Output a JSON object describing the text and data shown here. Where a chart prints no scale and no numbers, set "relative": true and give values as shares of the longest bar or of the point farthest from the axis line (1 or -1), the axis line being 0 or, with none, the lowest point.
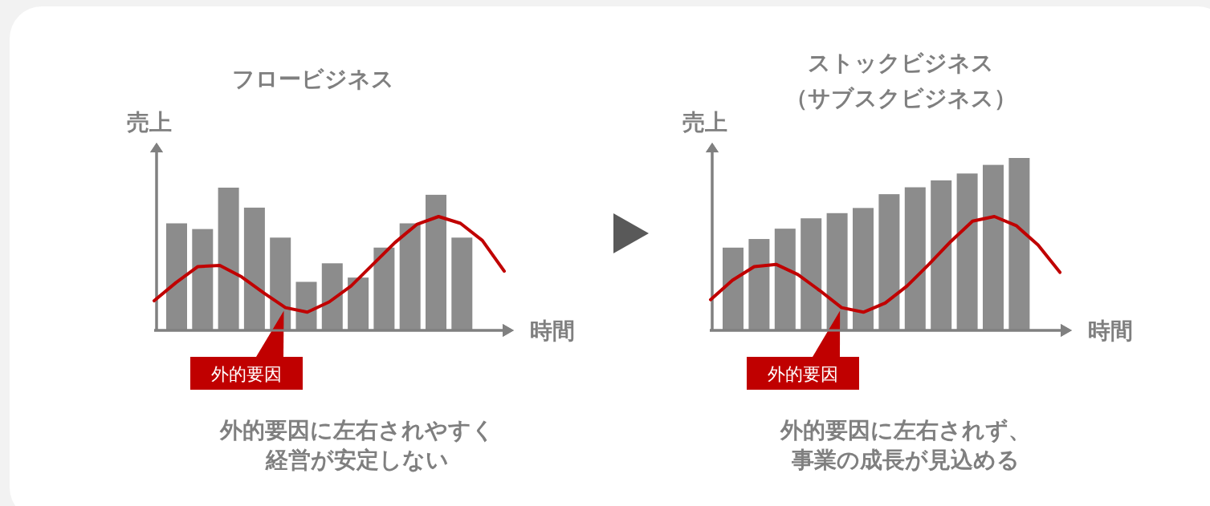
{
  "chart_data": [
    {
      "type": "bar",
      "title": "フロービジネス",
      "ylabel": "売上",
      "xlabel": "時間",
      "relative": true,
      "categories": [
        null,
        null,
        null,
        null,
        null,
        null,
        null,
        null,
        null,
        null,
        null,
        null
      ],
      "series": [
        {
          "color": "#8c8c8c",
          "values": [
            0.75,
            0.71,
            1,
            0.86,
            0.65,
            0.34,
            0.47,
            0.37,
            0.58,
            0.75,
            0.95,
            0.65
          ]
        }
      ],
      "annotations": [
        "外的要因に左右されやすく",
        "経営が安定しない"
      ]
    },
    {
      "type": "line",
      "relative": true,
      "categories": [
        null,
        null,
        null,
        null,
        null,
        null,
        null,
        null,
        null,
        null,
        null,
        null,
        null,
        null,
        null,
        null,
        null
      ],
      "series": [
        {
          "color": "#c00000",
          "values": [
            0.26,
            0.42,
            0.56,
            0.57,
            0.47,
            0.33,
            0.2,
            0.16,
            0.25,
            0.39,
            0.58,
            0.77,
            0.93,
            1,
            0.94,
            0.79,
            0.52
          ]
        }
      ],
      "annotations": [
        "外的要因"
      ]
    },
    {
      "type": "bar",
      "title": "ストックビジネス",
      "subtitle": "（サブスクビジネス）",
      "ylabel": "売上",
      "xlabel": "時間",
      "relative": true,
      "categories": [
        null,
        null,
        null,
        null,
        null,
        null,
        null,
        null,
        null,
        null,
        null,
        null
      ],
      "series": [
        {
          "color": "#8c8c8c",
          "values": [
            0.48,
            0.53,
            0.59,
            0.65,
            0.68,
            0.71,
            0.79,
            0.83,
            0.87,
            0.91,
            0.96,
            1
          ]
        }
      ],
      "annotations": [
        "外的要因に左右されず、",
        "事業の成長が見込める"
      ]
    },
    {
      "type": "line",
      "relative": true,
      "categories": [
        null,
        null,
        null,
        null,
        null,
        null,
        null,
        null,
        null,
        null,
        null,
        null,
        null,
        null,
        null,
        null,
        null
      ],
      "series": [
        {
          "color": "#c00000",
          "values": [
            0.27,
            0.44,
            0.56,
            0.58,
            0.49,
            0.35,
            0.2,
            0.16,
            0.24,
            0.39,
            0.58,
            0.78,
            0.96,
            1,
            0.92,
            0.75,
            0.51
          ]
        }
      ],
      "annotations": [
        "外的要因"
      ]
    }
  ]
}
